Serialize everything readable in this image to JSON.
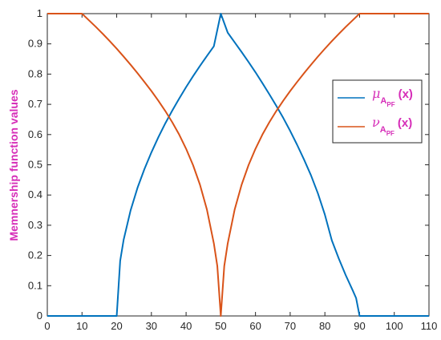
{
  "chart_data": {
    "type": "line",
    "title": "",
    "xlabel": "",
    "ylabel": "Memnership function values",
    "xlim": [
      0,
      110
    ],
    "ylim": [
      0,
      1
    ],
    "xticks": [
      0,
      10,
      20,
      30,
      40,
      50,
      60,
      70,
      80,
      90,
      100,
      110
    ],
    "yticks": [
      0,
      0.1,
      0.2,
      0.3,
      0.4,
      0.5,
      0.6,
      0.7,
      0.8,
      0.9,
      1
    ],
    "grid": false,
    "legend_position": "right",
    "series": [
      {
        "symbol": "μ",
        "subscript": "A",
        "subsubscript": "PF",
        "arg": "(x)",
        "color": "#0072BD",
        "x": [
          0,
          20,
          21,
          22,
          24,
          26,
          28,
          30,
          32,
          34,
          36,
          38,
          40,
          42,
          44,
          46,
          48,
          50,
          52,
          54,
          56,
          58,
          60,
          62,
          64,
          66,
          68,
          70,
          72,
          74,
          76,
          78,
          80,
          82,
          84,
          86,
          88,
          89,
          90,
          110
        ],
        "y": [
          0,
          0,
          0.182,
          0.252,
          0.349,
          0.424,
          0.486,
          0.541,
          0.591,
          0.637,
          0.679,
          0.719,
          0.757,
          0.793,
          0.827,
          0.86,
          0.892,
          1.0,
          0.937,
          0.905,
          0.873,
          0.84,
          0.806,
          0.77,
          0.733,
          0.695,
          0.655,
          0.612,
          0.566,
          0.517,
          0.465,
          0.405,
          0.335,
          0.25,
          0.19,
          0.135,
          0.085,
          0.059,
          0,
          0
        ]
      },
      {
        "symbol": "ν",
        "subscript": "A",
        "subsubscript": "PF",
        "arg": "(x)",
        "color": "#D95319",
        "x": [
          0,
          10,
          12,
          14,
          16,
          18,
          20,
          22,
          24,
          26,
          28,
          30,
          32,
          34,
          36,
          38,
          40,
          42,
          44,
          46,
          48,
          49,
          50,
          51,
          52,
          54,
          56,
          58,
          60,
          62,
          64,
          66,
          68,
          70,
          72,
          74,
          76,
          78,
          80,
          82,
          84,
          86,
          88,
          90,
          92,
          94,
          96,
          98,
          100,
          110
        ],
        "y": [
          1,
          1,
          0.978,
          0.956,
          0.933,
          0.909,
          0.884,
          0.858,
          0.831,
          0.803,
          0.774,
          0.744,
          0.712,
          0.678,
          0.641,
          0.6,
          0.553,
          0.499,
          0.434,
          0.352,
          0.24,
          0.165,
          0,
          0.165,
          0.24,
          0.352,
          0.434,
          0.499,
          0.553,
          0.6,
          0.641,
          0.678,
          0.712,
          0.744,
          0.774,
          0.803,
          0.831,
          0.858,
          0.884,
          0.909,
          0.933,
          0.956,
          0.978,
          1.0,
          1.0,
          1.0,
          1.0,
          1.0,
          1,
          1
        ]
      }
    ]
  }
}
